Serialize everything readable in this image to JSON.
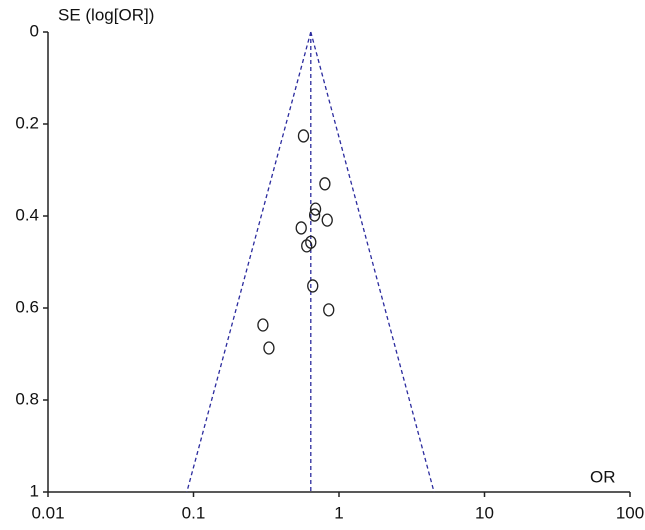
{
  "chart_data": {
    "type": "scatter",
    "x_label": "OR",
    "y_label": "SE (log[OR])",
    "x_log": true,
    "y_inverted": true,
    "xlim": [
      0.01,
      100
    ],
    "xticks": [
      0.01,
      0.1,
      1,
      10,
      100
    ],
    "ylim": [
      0,
      1
    ],
    "yticks": [
      0,
      0.2,
      0.4,
      0.6,
      0.8,
      1
    ],
    "marker_color": "#222",
    "line_color": "#2b2b9e",
    "series": [
      {
        "x": [
          0.57,
          0.8,
          0.69,
          0.68,
          0.83,
          0.55,
          0.64,
          0.6,
          0.66,
          0.85,
          0.3,
          0.33
        ],
        "values": [
          0.226,
          0.33,
          0.385,
          0.398,
          0.409,
          0.426,
          0.457,
          0.465,
          0.552,
          0.604,
          0.637,
          0.687
        ]
      }
    ],
    "pooled_or": 0.64,
    "funnel_lower_at_max_se": 0.09,
    "funnel_upper_at_max_se": 4.5
  }
}
